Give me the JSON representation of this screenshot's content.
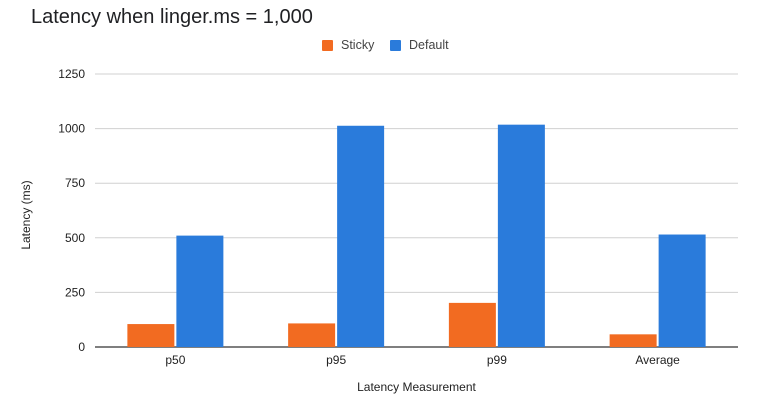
{
  "chart_data": {
    "type": "bar",
    "title": "Latency when linger.ms = 1,000",
    "xlabel": "Latency Measurement",
    "ylabel": "Latency (ms)",
    "categories": [
      "p50",
      "p95",
      "p99",
      "Average"
    ],
    "series": [
      {
        "name": "Sticky",
        "color": "#f26b21",
        "values": [
          105,
          108,
          202,
          58
        ]
      },
      {
        "name": "Default",
        "color": "#2a7bdb",
        "values": [
          510,
          1013,
          1018,
          515
        ]
      }
    ],
    "ylim": [
      0,
      1250
    ],
    "yticks": [
      0,
      250,
      500,
      750,
      1000,
      1250
    ],
    "grid": true,
    "legend_position": "top-center"
  }
}
